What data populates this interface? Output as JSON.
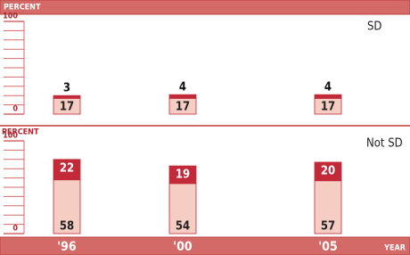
{
  "chart_data": [
    {
      "type": "bar",
      "stacked": true,
      "title": "SD",
      "y_label": "PERCENT",
      "ylim": [
        0,
        100
      ],
      "yticks": [
        0,
        100
      ],
      "minor_yticks": [
        10,
        20,
        30,
        40,
        50,
        60,
        70,
        80,
        90
      ],
      "series": [
        {
          "color": "#f5cdc3",
          "values": [
            17,
            17,
            17
          ]
        },
        {
          "color": "#c22a3a",
          "values": [
            3,
            4,
            4
          ]
        }
      ]
    },
    {
      "type": "bar",
      "stacked": true,
      "title": "Not SD",
      "y_label": "PERCENT",
      "x_label": "YEAR",
      "categories": [
        "'96",
        "'00",
        "'05"
      ],
      "ylim": [
        0,
        100
      ],
      "yticks": [
        0,
        100
      ],
      "minor_yticks": [
        10,
        20,
        30,
        40,
        50,
        60,
        70,
        80,
        90
      ],
      "series": [
        {
          "color": "#f5cdc3",
          "values": [
            58,
            54,
            57
          ]
        },
        {
          "color": "#c22a3a",
          "values": [
            22,
            19,
            20
          ]
        }
      ]
    }
  ]
}
